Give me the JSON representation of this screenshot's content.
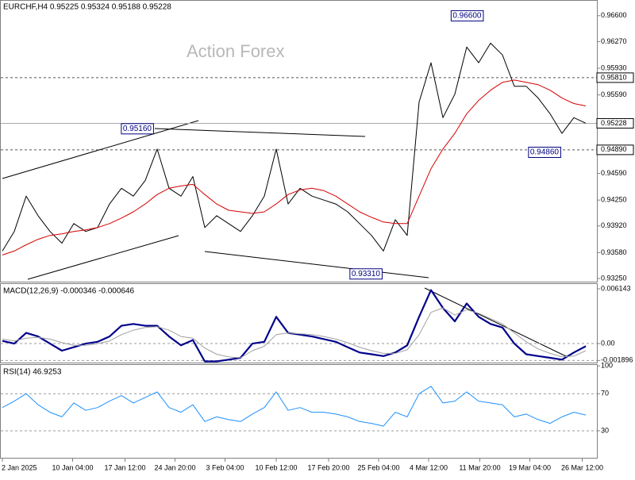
{
  "chart_data": [
    {
      "type": "line",
      "title": "EURCHF,H4  0.95225 0.95324 0.95188 0.95228",
      "watermark": "Action Forex",
      "x": [
        0,
        1,
        2,
        3,
        4,
        5,
        6,
        7,
        8,
        9,
        10,
        11,
        12,
        13,
        14,
        15,
        16,
        17,
        18,
        19,
        20,
        21,
        22,
        23,
        24,
        25,
        26,
        27,
        28,
        29,
        30,
        31,
        32,
        33,
        34,
        35,
        36,
        37,
        38,
        39,
        40,
        41,
        42,
        43,
        44,
        45,
        46,
        47,
        48,
        49
      ],
      "xlim": [
        0,
        50
      ],
      "ylim": [
        0.9321,
        0.968
      ],
      "yticks": [
        {
          "value": 0.966,
          "label": "0.96600"
        },
        {
          "value": 0.9627,
          "label": "0.96270"
        },
        {
          "value": 0.9593,
          "label": "0.95930"
        },
        {
          "value": 0.9559,
          "label": "0.95590"
        },
        {
          "value": 0.9459,
          "label": "0.94590"
        },
        {
          "value": 0.9425,
          "label": "0.94250"
        },
        {
          "value": 0.9392,
          "label": "0.93920"
        },
        {
          "value": 0.9358,
          "label": "0.93580"
        },
        {
          "value": 0.9325,
          "label": "0.93250"
        }
      ],
      "series": [
        {
          "name": "EURCHF",
          "color": "#000000",
          "width": 1,
          "values": [
            0.936,
            0.9385,
            0.943,
            0.9405,
            0.9385,
            0.937,
            0.9395,
            0.9385,
            0.939,
            0.942,
            0.944,
            0.943,
            0.945,
            0.949,
            0.944,
            0.943,
            0.9455,
            0.939,
            0.9405,
            0.9395,
            0.9385,
            0.9405,
            0.943,
            0.949,
            0.942,
            0.944,
            0.943,
            0.9425,
            0.942,
            0.941,
            0.9395,
            0.938,
            0.936,
            0.94,
            0.938,
            0.955,
            0.96,
            0.953,
            0.956,
            0.962,
            0.96,
            0.9625,
            0.961,
            0.957,
            0.957,
            0.9555,
            0.9535,
            0.951,
            0.953,
            0.9523
          ]
        },
        {
          "name": "MA",
          "color": "#d40000",
          "width": 1,
          "values": [
            0.9355,
            0.936,
            0.9368,
            0.9375,
            0.938,
            0.9382,
            0.9385,
            0.9387,
            0.939,
            0.9395,
            0.9402,
            0.941,
            0.942,
            0.9432,
            0.944,
            0.9443,
            0.9445,
            0.9432,
            0.942,
            0.9412,
            0.941,
            0.9408,
            0.941,
            0.942,
            0.9432,
            0.9438,
            0.944,
            0.9437,
            0.943,
            0.942,
            0.941,
            0.9403,
            0.9397,
            0.9395,
            0.9395,
            0.943,
            0.9465,
            0.949,
            0.951,
            0.9535,
            0.9552,
            0.9565,
            0.9575,
            0.9578,
            0.9575,
            0.9572,
            0.9565,
            0.9555,
            0.9548,
            0.9545
          ]
        }
      ],
      "levels": [
        {
          "value": 0.9581,
          "label": "0.95810",
          "style": "dashed"
        },
        {
          "value": 0.9489,
          "label": "0.94890",
          "style": "dashed"
        },
        {
          "value": 0.95228,
          "label": "0.95228",
          "style": "solid"
        }
      ],
      "annotations": [
        {
          "x": 12.8,
          "value": 0.9516,
          "label": "0.95160"
        },
        {
          "x": 40.5,
          "value": 0.966,
          "label": "0.96600"
        },
        {
          "x": 47,
          "value": 0.9486,
          "label": "0.94860"
        },
        {
          "x": 32,
          "value": 0.9331,
          "label": "0.93310"
        }
      ]
    },
    {
      "type": "line",
      "title": "MACD(12,26,9) -0.000346 -0.000646",
      "x": [
        0,
        1,
        2,
        3,
        4,
        5,
        6,
        7,
        8,
        9,
        10,
        11,
        12,
        13,
        14,
        15,
        16,
        17,
        18,
        19,
        20,
        21,
        22,
        23,
        24,
        25,
        26,
        27,
        28,
        29,
        30,
        31,
        32,
        33,
        34,
        35,
        36,
        37,
        38,
        39,
        40,
        41,
        42,
        43,
        44,
        45,
        46,
        47,
        48,
        49
      ],
      "xlim": [
        0,
        50
      ],
      "ylim": [
        -0.00222,
        0.00668
      ],
      "grid": "dashed",
      "yticks": [
        0.006143,
        {
          "value": 0,
          "label": "0.00"
        },
        -0.001896
      ],
      "series": [
        {
          "name": "MACD",
          "color": "#00008b",
          "width": 2.2,
          "values": [
            0.0003,
            0,
            0.0012,
            0.0008,
            0,
            -0.0008,
            -0.0004,
            0,
            0.0002,
            0.0008,
            0.002,
            0.0022,
            0.002,
            0.002,
            0.0008,
            -0.0002,
            0.0004,
            -0.002,
            -0.002,
            -0.0018,
            -0.0016,
            0,
            0.0002,
            0.003,
            0.0012,
            0.001,
            0.0008,
            0.0005,
            0.0002,
            -0.0004,
            -0.001,
            -0.0012,
            -0.0014,
            -0.001,
            -0.0002,
            0.003,
            0.006,
            0.004,
            0.0025,
            0.0045,
            0.003,
            0.0022,
            0.0018,
            0,
            -0.0012,
            -0.0014,
            -0.0016,
            -0.0018,
            -0.001,
            -0.0003
          ]
        },
        {
          "name": "Signal",
          "color": "#a0a0a0",
          "width": 1,
          "values": [
            0.0005,
            0.0003,
            0.0006,
            0.0007,
            0.0005,
            0.0001,
            -0.0002,
            -0.0002,
            0,
            0.0003,
            0.001,
            0.0015,
            0.0018,
            0.0019,
            0.0015,
            0.0008,
            0.0006,
            -0.0005,
            -0.0012,
            -0.0015,
            -0.0016,
            -0.0008,
            -0.0003,
            0.001,
            0.0012,
            0.0011,
            0.001,
            0.0008,
            0.0005,
            0.0001,
            -0.0004,
            -0.0008,
            -0.0011,
            -0.0011,
            -0.0007,
            0.001,
            0.0035,
            0.004,
            0.0032,
            0.0038,
            0.0034,
            0.0028,
            0.0022,
            0.0012,
            0.0002,
            -0.0006,
            -0.0011,
            -0.0015,
            -0.0014,
            -0.0008
          ]
        }
      ]
    },
    {
      "type": "line",
      "title": "RSI(14) 46.9253",
      "x": [
        0,
        1,
        2,
        3,
        4,
        5,
        6,
        7,
        8,
        9,
        10,
        11,
        12,
        13,
        14,
        15,
        16,
        17,
        18,
        19,
        20,
        21,
        22,
        23,
        24,
        25,
        26,
        27,
        28,
        29,
        30,
        31,
        32,
        33,
        34,
        35,
        36,
        37,
        38,
        39,
        40,
        41,
        42,
        43,
        44,
        45,
        46,
        47,
        48,
        49
      ],
      "xlim": [
        0,
        50
      ],
      "ylim": [
        0,
        101
      ],
      "grid": "dashed",
      "yticks": [
        100,
        70,
        30
      ],
      "xticks": [
        {
          "value": 0,
          "label": "2 Jan 2025"
        },
        {
          "value": 5.9,
          "label": "10 Jan 04:00"
        },
        {
          "value": 10.3,
          "label": "17 Jan 12:00"
        },
        {
          "value": 14.5,
          "label": "24 Jan 20:00"
        },
        {
          "value": 18.7,
          "label": "3 Feb 04:00"
        },
        {
          "value": 23,
          "label": "10 Feb 12:00"
        },
        {
          "value": 27.4,
          "label": "17 Feb 20:00"
        },
        {
          "value": 31.6,
          "label": "25 Feb 04:00"
        },
        {
          "value": 35.8,
          "label": "4 Mar 12:00"
        },
        {
          "value": 40.1,
          "label": "11 Mar 20:00"
        },
        {
          "value": 44.3,
          "label": "19 Mar 04:00"
        },
        {
          "value": 48.7,
          "label": "26 Mar 12:00"
        }
      ],
      "series": [
        {
          "name": "RSI",
          "color": "#1e90ff",
          "width": 1,
          "values": [
            55,
            62,
            70,
            58,
            50,
            45,
            60,
            52,
            55,
            62,
            68,
            60,
            66,
            72,
            55,
            50,
            58,
            40,
            45,
            42,
            40,
            48,
            55,
            72,
            52,
            55,
            50,
            50,
            48,
            45,
            40,
            38,
            35,
            50,
            45,
            70,
            78,
            60,
            62,
            72,
            62,
            60,
            58,
            45,
            48,
            42,
            38,
            45,
            50,
            47
          ]
        }
      ]
    }
  ]
}
